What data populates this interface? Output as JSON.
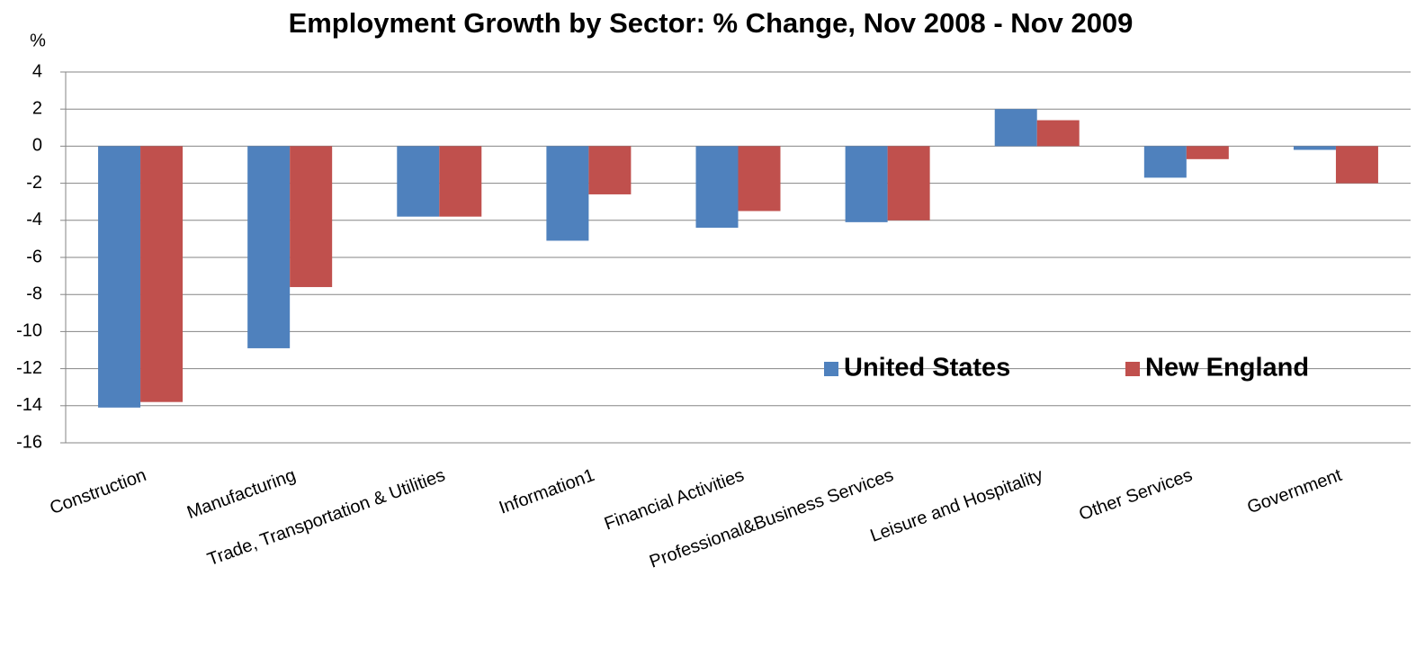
{
  "chart_data": {
    "type": "bar",
    "title": "Employment Growth by Sector: % Change, Nov 2008 - Nov 2009",
    "y_label": "%",
    "categories": [
      "Construction",
      "Manufacturing",
      "Trade, Transportation & Utilities",
      "Information1",
      "Financial Activities",
      "Professional&Business Services",
      "Leisure and Hospitality",
      "Other Services",
      "Government"
    ],
    "series": [
      {
        "name": "United States",
        "color": "#4f81bd",
        "values": [
          -14.1,
          -10.9,
          -3.8,
          -5.1,
          -4.4,
          -4.1,
          2.0,
          -1.7,
          -0.2
        ]
      },
      {
        "name": "New England",
        "color": "#c0504d",
        "values": [
          -13.8,
          -7.6,
          -3.8,
          -2.6,
          -3.5,
          -4.0,
          1.4,
          -0.7,
          -2.0
        ]
      }
    ],
    "ylim": [
      -16,
      4
    ],
    "yticks": [
      -16,
      -14,
      -12,
      -10,
      -8,
      -6,
      -4,
      -2,
      0,
      2,
      4
    ],
    "grid": true
  }
}
